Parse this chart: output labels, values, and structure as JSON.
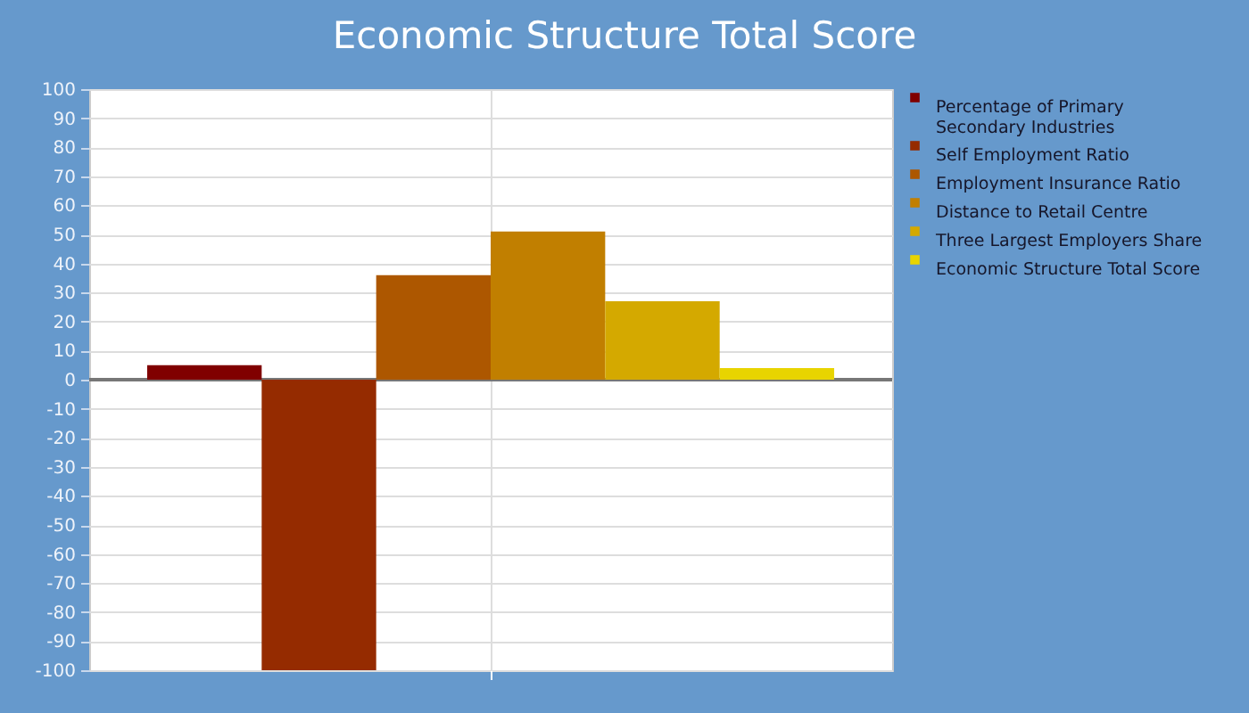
{
  "chart_data": {
    "type": "bar",
    "title": "Economic Structure Total Score",
    "categories": [
      null
    ],
    "series": [
      {
        "name": "Percentage of Primary Secondary Industries",
        "color": "#800000",
        "values": [
          5
        ]
      },
      {
        "name": "Self Employment Ratio",
        "color": "#952b00",
        "values": [
          -100
        ]
      },
      {
        "name": "Employment Insurance Ratio",
        "color": "#ad5700",
        "values": [
          36
        ]
      },
      {
        "name": "Distance to Retail Centre",
        "color": "#c17f00",
        "values": [
          51
        ]
      },
      {
        "name": "Three Largest Employers Share",
        "color": "#d4a900",
        "values": [
          27
        ]
      },
      {
        "name": "Economic Structure Total Score",
        "color": "#e8d400",
        "values": [
          4
        ]
      }
    ],
    "ylim": [
      -100,
      100
    ],
    "yticks": [
      -100,
      -90,
      -80,
      -70,
      -60,
      -50,
      -40,
      -30,
      -20,
      -10,
      0,
      10,
      20,
      30,
      40,
      50,
      60,
      70,
      80,
      90,
      100
    ],
    "grid": true,
    "legend": "right",
    "ref_lines": [
      {
        "axis": "y",
        "value": 0,
        "color": "#777777"
      }
    ]
  }
}
